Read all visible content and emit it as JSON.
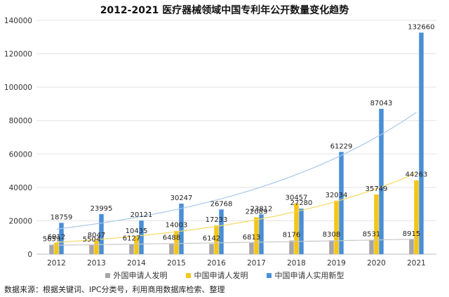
{
  "chart_data": {
    "type": "bar",
    "title": "2012-2021 医疗器械领域中国专利年公开数量变化趋势",
    "categories": [
      "2012",
      "2013",
      "2014",
      "2015",
      "2016",
      "2017",
      "2018",
      "2019",
      "2020",
      "2021"
    ],
    "ylim": [
      0,
      140000
    ],
    "yticks": [
      0,
      20000,
      40000,
      60000,
      80000,
      100000,
      120000,
      140000
    ],
    "series": [
      {
        "name": "外国申请人发明",
        "color": "#a6a6a6",
        "values": [
          5659,
          5504,
          6127,
          6488,
          6142,
          6813,
          8176,
          8308,
          8531,
          8915
        ]
      },
      {
        "name": "中国申请人发明",
        "color": "#f5c518",
        "values": [
          6912,
          8047,
          10435,
          14003,
          17233,
          22089,
          30457,
          32034,
          35749,
          44263
        ]
      },
      {
        "name": "中国申请人实用新型",
        "color": "#4a8fd6",
        "values": [
          18759,
          23995,
          20121,
          30247,
          26768,
          23812,
          27280,
          61229,
          87043,
          132660
        ]
      }
    ],
    "data_labels": [
      [
        "5659",
        "5504",
        "6127",
        "6488",
        "6142",
        "6813",
        "8176",
        "8308",
        "8531",
        "8915"
      ],
      [
        "6912",
        "8047",
        "10435",
        "14003",
        "17233",
        "22089",
        "30457",
        "32034",
        "35749",
        "44263"
      ],
      [
        "18759",
        "23995",
        "20121",
        "30247",
        "26768",
        "23812",
        "27280",
        "61229",
        "87043",
        "132660"
      ]
    ],
    "trendlines": true,
    "grid": true,
    "legend_position": "bottom"
  },
  "source_note": "数据来源：根据关键词、IPC分类号，利用商用数据库检索、整理"
}
